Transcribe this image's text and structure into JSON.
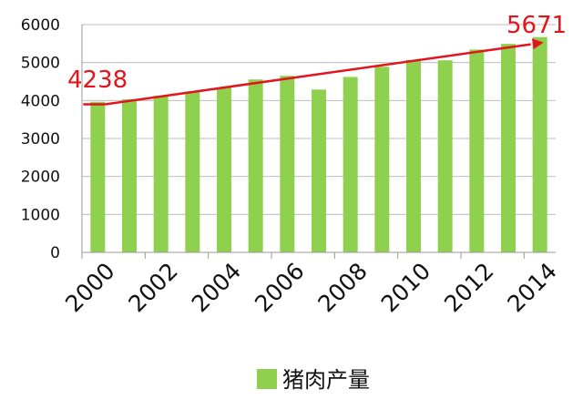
{
  "chart_data": {
    "type": "bar",
    "categories": [
      "2000",
      "2001",
      "2002",
      "2003",
      "2004",
      "2005",
      "2006",
      "2007",
      "2008",
      "2009",
      "2010",
      "2011",
      "2012",
      "2013",
      "2014"
    ],
    "x_tick_labels": [
      "2000",
      "2002",
      "2004",
      "2006",
      "2008",
      "2010",
      "2012",
      "2014"
    ],
    "series": [
      {
        "name": "猪肉产量",
        "color": "#8fd14f",
        "values": [
          3966,
          4031,
          4123,
          4239,
          4341,
          4555,
          4650,
          4288,
          4621,
          4891,
          5071,
          5060,
          5343,
          5493,
          5671
        ]
      }
    ],
    "ylim": [
      0,
      6000
    ],
    "yticks": [
      "0",
      "1000",
      "2000",
      "3000",
      "4000",
      "5000",
      "6000"
    ],
    "grid": true,
    "trend": {
      "color": "#e3141b",
      "from_value": 3900,
      "to_value": 5530,
      "start_label": "4238",
      "end_label": "5671"
    },
    "legend_position": "bottom-center",
    "title": "",
    "xlabel": "",
    "ylabel": ""
  }
}
